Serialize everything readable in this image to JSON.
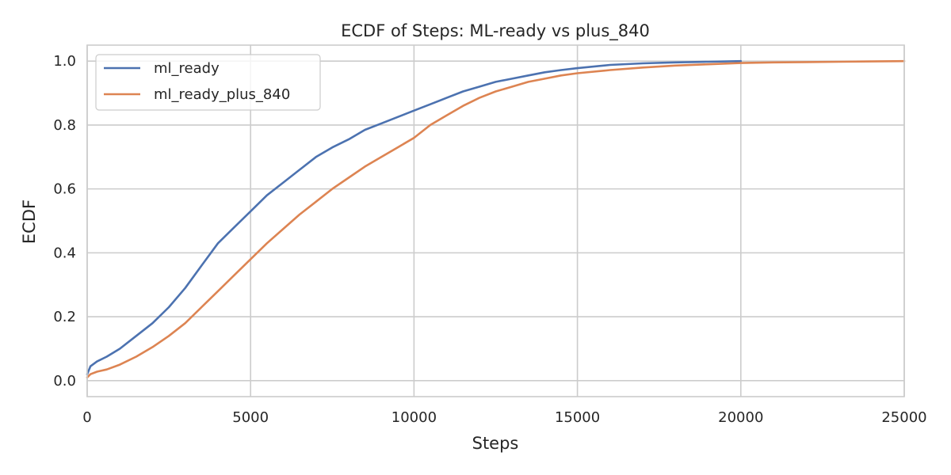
{
  "chart_data": {
    "type": "line",
    "title": "ECDF of Steps: ML-ready vs plus_840",
    "xlabel": "Steps",
    "ylabel": "ECDF",
    "xlim": [
      0,
      25000
    ],
    "ylim": [
      -0.05,
      1.05
    ],
    "xticks": [
      0,
      5000,
      10000,
      15000,
      20000,
      25000
    ],
    "yticks": [
      "0.0",
      "0.2",
      "0.4",
      "0.6",
      "0.8",
      "1.0"
    ],
    "grid": true,
    "legend_position": "top-left",
    "series": [
      {
        "name": "ml_ready",
        "color": "#4c72b0",
        "x": [
          0,
          100,
          300,
          600,
          1000,
          1500,
          2000,
          2500,
          3000,
          3500,
          4000,
          4500,
          5000,
          5500,
          6000,
          6500,
          7000,
          7500,
          8000,
          8500,
          9000,
          9500,
          10000,
          10500,
          11000,
          11500,
          12000,
          12500,
          13000,
          13500,
          14000,
          14500,
          15000,
          16000,
          17000,
          18000,
          19000,
          20000
        ],
        "y": [
          0.02,
          0.045,
          0.06,
          0.075,
          0.1,
          0.14,
          0.18,
          0.23,
          0.29,
          0.36,
          0.43,
          0.48,
          0.53,
          0.58,
          0.62,
          0.66,
          0.7,
          0.73,
          0.755,
          0.785,
          0.805,
          0.825,
          0.845,
          0.865,
          0.885,
          0.905,
          0.92,
          0.935,
          0.945,
          0.955,
          0.965,
          0.972,
          0.978,
          0.988,
          0.993,
          0.996,
          0.998,
          1.0
        ]
      },
      {
        "name": "ml_ready_plus_840",
        "color": "#dd8452",
        "x": [
          0,
          100,
          300,
          600,
          1000,
          1500,
          2000,
          2500,
          3000,
          3500,
          4000,
          4500,
          5000,
          5500,
          6000,
          6500,
          7000,
          7500,
          8000,
          8500,
          9000,
          9500,
          10000,
          10500,
          11000,
          11500,
          12000,
          12500,
          13000,
          13500,
          14000,
          14500,
          15000,
          16000,
          17000,
          18000,
          19000,
          20000,
          21000,
          22000,
          23000,
          24000,
          25000
        ],
        "y": [
          0.01,
          0.02,
          0.028,
          0.035,
          0.05,
          0.075,
          0.105,
          0.14,
          0.18,
          0.23,
          0.28,
          0.33,
          0.38,
          0.43,
          0.475,
          0.52,
          0.56,
          0.6,
          0.635,
          0.67,
          0.7,
          0.73,
          0.76,
          0.8,
          0.83,
          0.86,
          0.885,
          0.905,
          0.92,
          0.935,
          0.945,
          0.955,
          0.962,
          0.972,
          0.98,
          0.986,
          0.99,
          0.994,
          0.996,
          0.997,
          0.998,
          0.999,
          1.0
        ]
      }
    ]
  }
}
